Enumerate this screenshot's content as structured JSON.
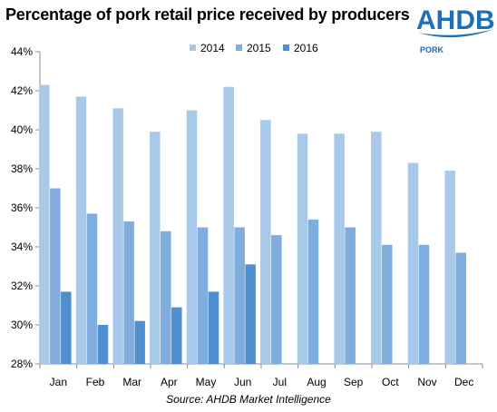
{
  "brand": {
    "logo_text": "AHDB",
    "logo_sub": "PORK",
    "logo_color": "#1f6fb4"
  },
  "chart_data": {
    "type": "bar",
    "title": "Percentage of pork retail price received by producers",
    "source": "Source:  AHDB Market Intelligence",
    "categories": [
      "Jan",
      "Feb",
      "Mar",
      "Apr",
      "May",
      "Jun",
      "Jul",
      "Aug",
      "Sep",
      "Oct",
      "Nov",
      "Dec"
    ],
    "series": [
      {
        "name": "2014",
        "color": "#a9c9ea",
        "values": [
          42.3,
          41.7,
          41.1,
          39.9,
          41.0,
          42.2,
          40.5,
          39.8,
          39.8,
          39.9,
          38.3,
          37.9
        ]
      },
      {
        "name": "2015",
        "color": "#7eadde",
        "values": [
          37.0,
          35.7,
          35.3,
          34.8,
          35.0,
          35.0,
          34.6,
          35.4,
          35.0,
          34.1,
          34.1,
          33.7
        ]
      },
      {
        "name": "2016",
        "color": "#4f8fd0",
        "values": [
          31.7,
          30.0,
          30.2,
          30.9,
          31.7,
          33.1,
          null,
          null,
          null,
          null,
          null,
          null
        ]
      }
    ],
    "ylim": [
      28,
      44
    ],
    "yticks": [
      28,
      30,
      32,
      34,
      36,
      38,
      40,
      42,
      44
    ],
    "ytick_format": "{v}%",
    "legend_position": "top",
    "grid": false
  }
}
